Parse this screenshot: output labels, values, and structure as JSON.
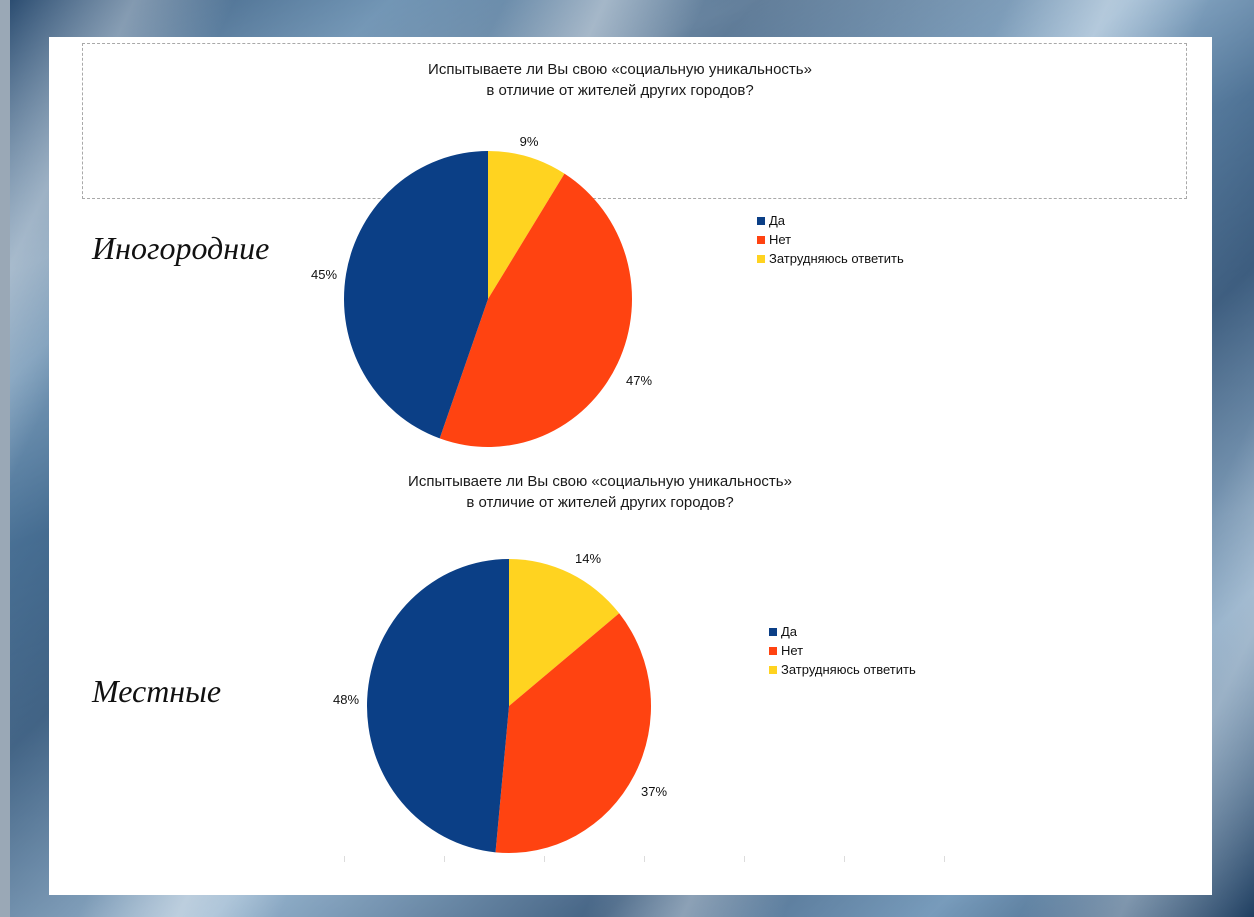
{
  "colors": {
    "yes": "#0b3f86",
    "no": "#ff4311",
    "unsure": "#ffd320"
  },
  "chart_data": [
    {
      "type": "pie",
      "group_label": "Иногородние",
      "title_line1": "Испытываете ли Вы свою «социальную уникальность»",
      "title_line2": "в отличие от жителей других городов?",
      "categories": [
        "Да",
        "Нет",
        "Затрудняюсь ответить"
      ],
      "values": [
        45,
        47,
        9
      ],
      "labels": [
        "45%",
        "47%",
        "9%"
      ],
      "legend_position": "right"
    },
    {
      "type": "pie",
      "group_label": "Местные",
      "title_line1": "Испытываете ли Вы свою «социальную уникальность»",
      "title_line2": "в отличие от жителей других городов?",
      "categories": [
        "Да",
        "Нет",
        "Затрудняюсь ответить"
      ],
      "values": [
        48,
        37,
        14
      ],
      "labels": [
        "48%",
        "37%",
        "14%"
      ],
      "legend_position": "right"
    }
  ]
}
